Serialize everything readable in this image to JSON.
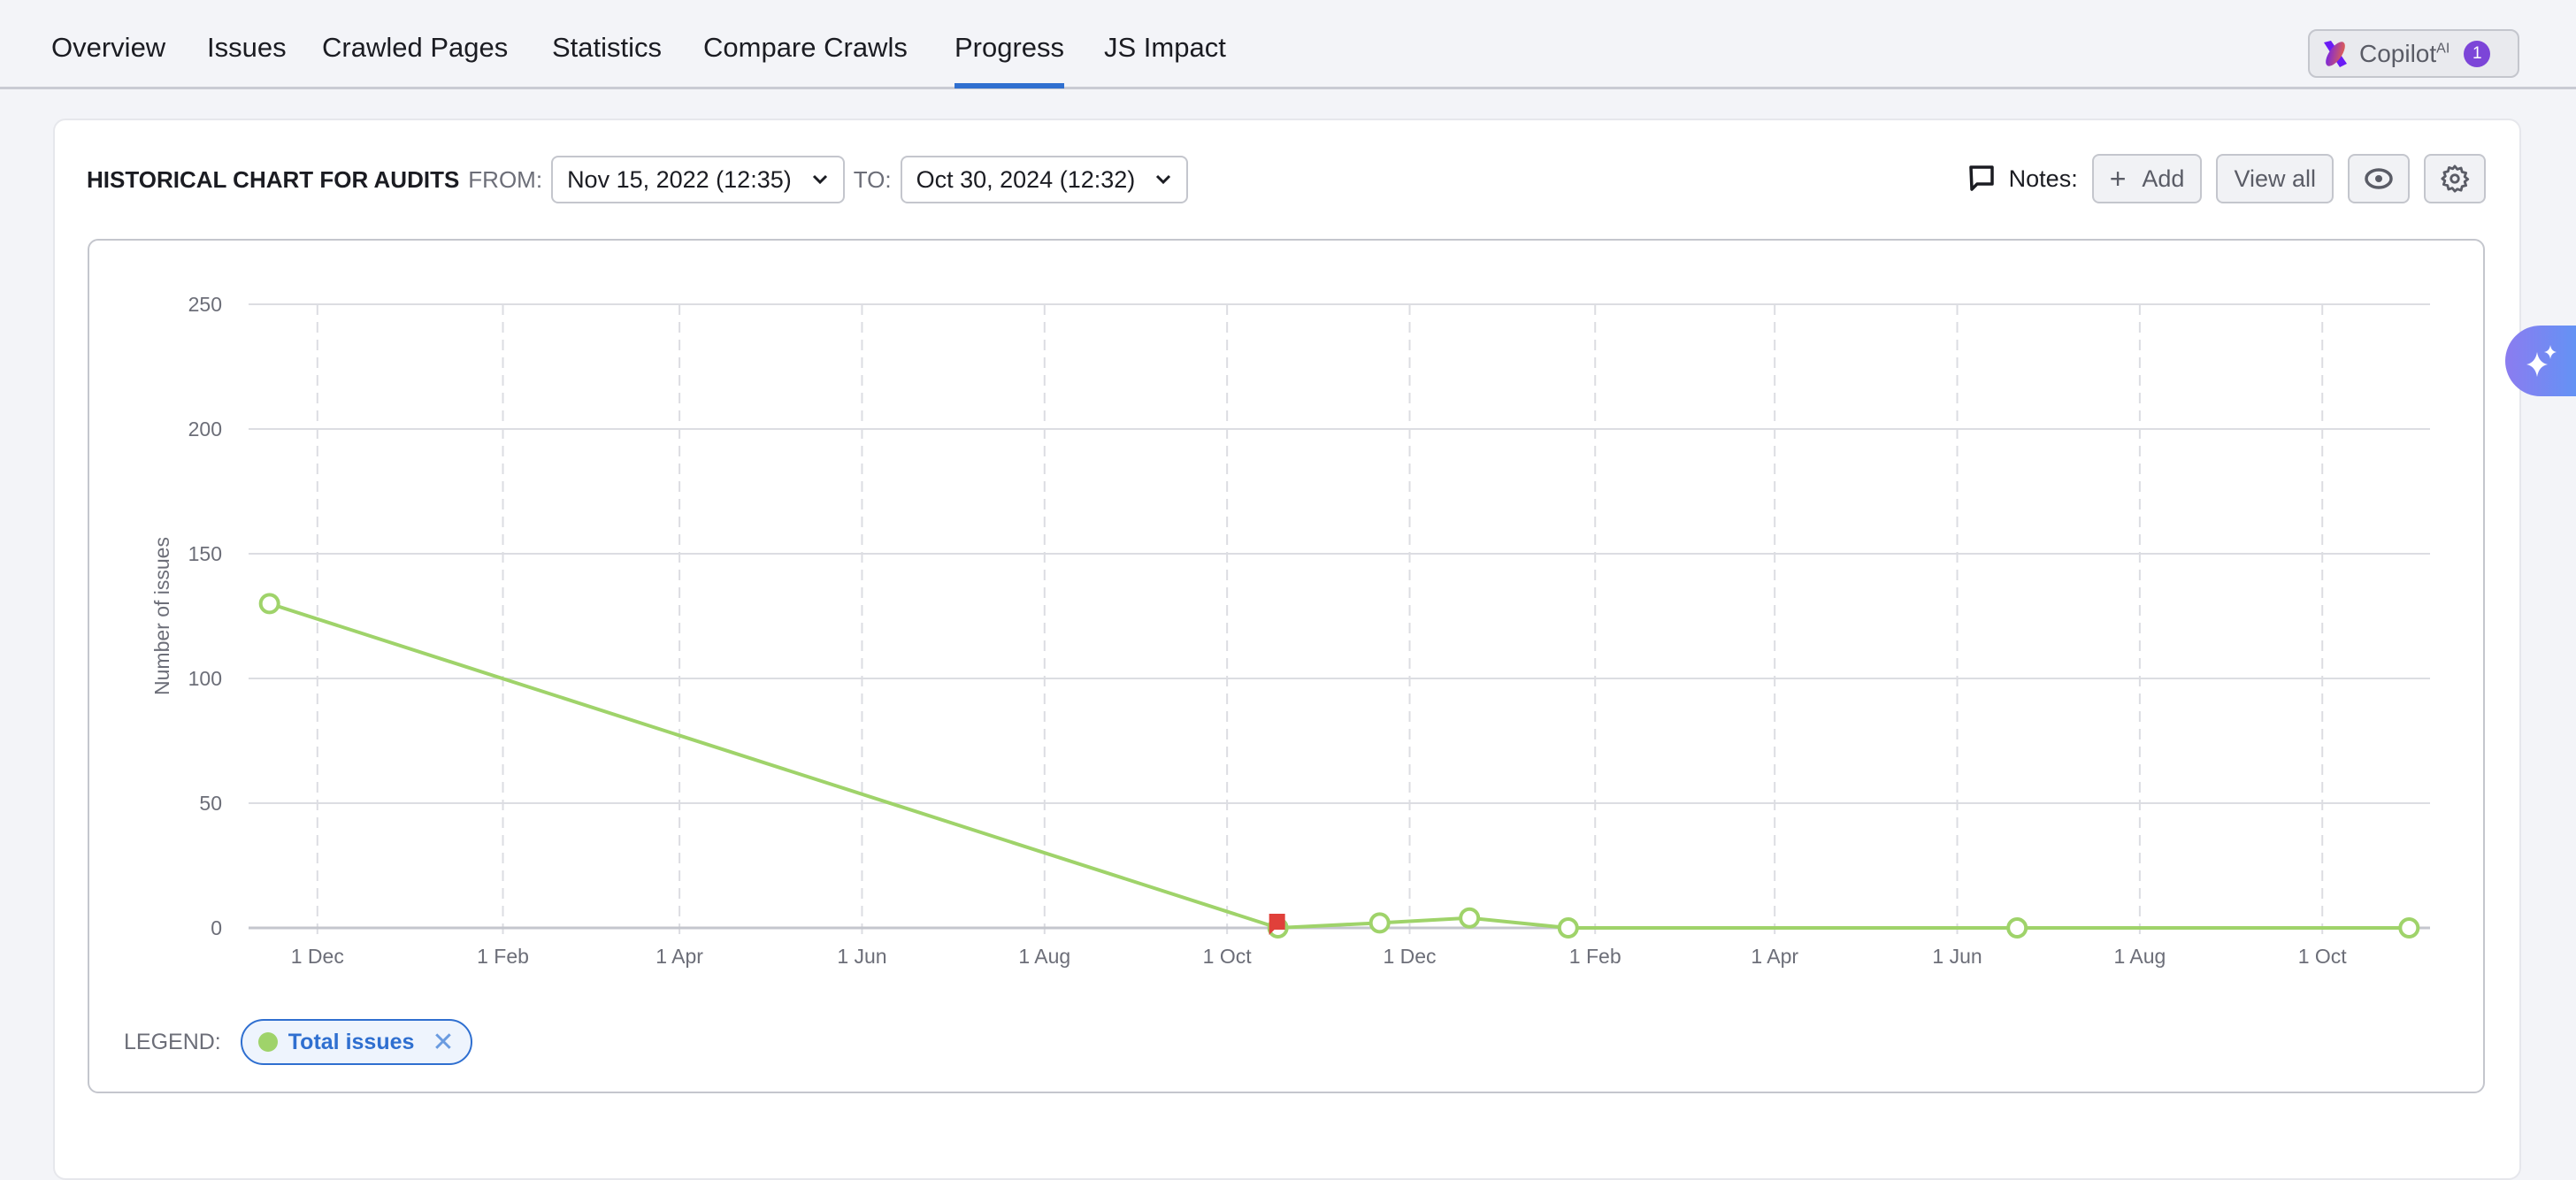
{
  "tabs": [
    {
      "label": "Overview"
    },
    {
      "label": "Issues"
    },
    {
      "label": "Crawled Pages"
    },
    {
      "label": "Statistics"
    },
    {
      "label": "Compare Crawls"
    },
    {
      "label": "Progress",
      "active": true
    },
    {
      "label": "JS Impact"
    }
  ],
  "copilot": {
    "label": "Copilot",
    "sup": "AI",
    "badge": "1"
  },
  "header": {
    "title": "HISTORICAL CHART FOR AUDITS",
    "from_label": "FROM:",
    "from_value": "Nov 15, 2022 (12:35)",
    "to_label": "TO:",
    "to_value": "Oct 30, 2024 (12:32)"
  },
  "notes": {
    "label": "Notes:",
    "add": "Add",
    "view_all": "View all"
  },
  "legend": {
    "label": "LEGEND:",
    "items": [
      {
        "label": "Total issues",
        "color": "#9fd36a"
      }
    ]
  },
  "chart_data": {
    "type": "line",
    "ylabel": "Number of issues",
    "ylim": [
      0,
      250
    ],
    "yticks": [
      0,
      50,
      100,
      150,
      200,
      250
    ],
    "xlim": [
      "2022-11-08",
      "2024-11-06"
    ],
    "xticks": [
      {
        "date": "2022-12-01",
        "label": "1 Dec"
      },
      {
        "date": "2023-02-01",
        "label": "1 Feb"
      },
      {
        "date": "2023-04-01",
        "label": "1 Apr"
      },
      {
        "date": "2023-06-01",
        "label": "1 Jun"
      },
      {
        "date": "2023-08-01",
        "label": "1 Aug"
      },
      {
        "date": "2023-10-01",
        "label": "1 Oct"
      },
      {
        "date": "2023-12-01",
        "label": "1 Dec"
      },
      {
        "date": "2024-02-01",
        "label": "1 Feb"
      },
      {
        "date": "2024-04-01",
        "label": "1 Apr"
      },
      {
        "date": "2024-06-01",
        "label": "1 Jun"
      },
      {
        "date": "2024-08-01",
        "label": "1 Aug"
      },
      {
        "date": "2024-10-01",
        "label": "1 Oct"
      }
    ],
    "grid": true,
    "series": [
      {
        "name": "Total issues",
        "color": "#9fd36a",
        "points": [
          {
            "x": "2022-11-15",
            "y": 130
          },
          {
            "x": "2023-10-18",
            "y": 0,
            "flag": true
          },
          {
            "x": "2023-11-21",
            "y": 2
          },
          {
            "x": "2023-12-21",
            "y": 4
          },
          {
            "x": "2024-01-23",
            "y": 0
          },
          {
            "x": "2024-06-21",
            "y": 0
          },
          {
            "x": "2024-10-30",
            "y": 0
          }
        ]
      }
    ],
    "flag_color": "#e0403a"
  }
}
